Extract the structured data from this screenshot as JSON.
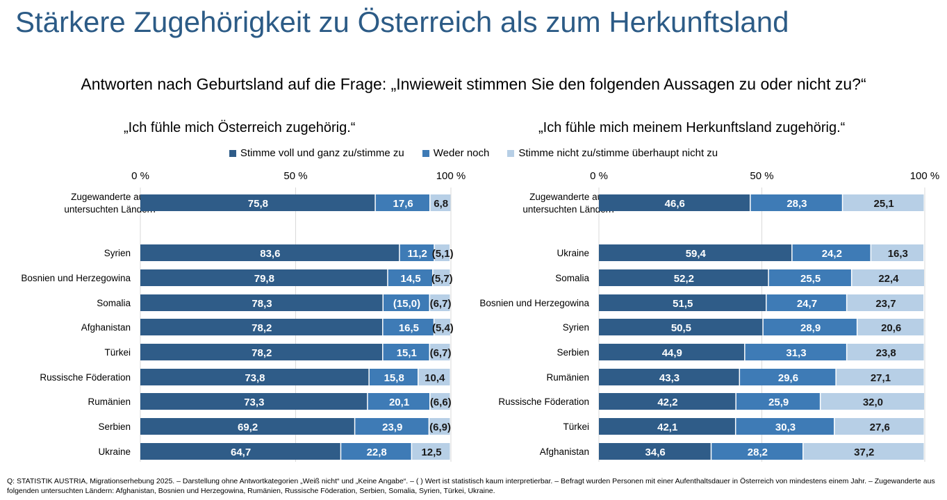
{
  "title": "Stärkere Zugehörigkeit zu Österreich als zum Herkunftsland",
  "subtitle": "Antworten nach Geburtsland auf die Frage: „Inwieweit stimmen Sie den folgenden Aussagen zu oder nicht zu?“",
  "footnote": "Q: STATISTIK AUSTRIA, Migrationserhebung 2025. – Darstellung ohne Antwortkategorien „Weiß nicht“ und „Keine Angabe“. – ( ) Wert ist statistisch kaum interpretierbar. – Befragt wurden Personen mit einer Aufenthaltsdauer in Österreich von mindestens einem Jahr. – Zugewanderte aus folgenden untersuchten Ländern: Afghanistan, Bosnien und Herzegowina, Rumänien, Russische Föderation, Serbien, Somalia, Syrien, Türkei, Ukraine.",
  "colors": {
    "title": "#2c5b86",
    "series": [
      "#2f5c88",
      "#3e7bb6",
      "#b7cfe6"
    ]
  },
  "legend": [
    "Stimme voll und ganz zu/stimme zu",
    "Weder noch",
    "Stimme nicht zu/stimme überhaupt nicht zu"
  ],
  "chart_data": [
    {
      "type": "bar",
      "orientation": "horizontal-stacked",
      "title": "„Ich fühle mich Österreich zugehörig.“",
      "xlim": [
        0,
        100
      ],
      "ticks": [
        "0 %",
        "50 %",
        "100 %"
      ],
      "grid": true,
      "categories": [
        "Zugewanderte aus untersuchten Ländern",
        "Syrien",
        "Bosnien und Herzegowina",
        "Somalia",
        "Afghanistan",
        "Türkei",
        "Russische Föderation",
        "Rumänien",
        "Serbien",
        "Ukraine"
      ],
      "series": [
        {
          "name": "Stimme voll und ganz zu/stimme zu",
          "values": [
            75.8,
            83.6,
            79.8,
            78.3,
            78.2,
            78.2,
            73.8,
            73.3,
            69.2,
            64.7
          ],
          "labels": [
            "75,8",
            "83,6",
            "79,8",
            "78,3",
            "78,2",
            "78,2",
            "73,8",
            "73,3",
            "69,2",
            "64,7"
          ]
        },
        {
          "name": "Weder noch",
          "values": [
            17.6,
            11.2,
            14.5,
            15.0,
            16.5,
            15.1,
            15.8,
            20.1,
            23.9,
            22.8
          ],
          "labels": [
            "17,6",
            "11,2",
            "14,5",
            "(15,0)",
            "16,5",
            "15,1",
            "15,8",
            "20,1",
            "23,9",
            "22,8"
          ]
        },
        {
          "name": "Stimme nicht zu/stimme überhaupt nicht zu",
          "values": [
            6.8,
            5.1,
            5.7,
            6.7,
            5.4,
            6.7,
            10.4,
            6.6,
            6.9,
            12.5
          ],
          "labels": [
            "6,8",
            "(5,1)",
            "(5,7)",
            "(6,7)",
            "(5,4)",
            "(6,7)",
            "10,4",
            "(6,6)",
            "(6,9)",
            "12,5"
          ]
        }
      ]
    },
    {
      "type": "bar",
      "orientation": "horizontal-stacked",
      "title": "„Ich fühle mich meinem Herkunftsland zugehörig.“",
      "xlim": [
        0,
        100
      ],
      "ticks": [
        "0 %",
        "50 %",
        "100 %"
      ],
      "grid": true,
      "categories": [
        "Zugewanderte aus untersuchten Ländern",
        "Ukraine",
        "Somalia",
        "Bosnien und Herzegowina",
        "Syrien",
        "Serbien",
        "Rumänien",
        "Russische Föderation",
        "Türkei",
        "Afghanistan"
      ],
      "series": [
        {
          "name": "Stimme voll und ganz zu/stimme zu",
          "values": [
            46.6,
            59.4,
            52.2,
            51.5,
            50.5,
            44.9,
            43.3,
            42.2,
            42.1,
            34.6
          ],
          "labels": [
            "46,6",
            "59,4",
            "52,2",
            "51,5",
            "50,5",
            "44,9",
            "43,3",
            "42,2",
            "42,1",
            "34,6"
          ]
        },
        {
          "name": "Weder noch",
          "values": [
            28.3,
            24.2,
            25.5,
            24.7,
            28.9,
            31.3,
            29.6,
            25.9,
            30.3,
            28.2
          ],
          "labels": [
            "28,3",
            "24,2",
            "25,5",
            "24,7",
            "28,9",
            "31,3",
            "29,6",
            "25,9",
            "30,3",
            "28,2"
          ]
        },
        {
          "name": "Stimme nicht zu/stimme überhaupt nicht zu",
          "values": [
            25.1,
            16.3,
            22.4,
            23.7,
            20.6,
            23.8,
            27.1,
            32.0,
            27.6,
            37.2
          ],
          "labels": [
            "25,1",
            "16,3",
            "22,4",
            "23,7",
            "20,6",
            "23,8",
            "27,1",
            "32,0",
            "27,6",
            "37,2"
          ]
        }
      ]
    }
  ]
}
